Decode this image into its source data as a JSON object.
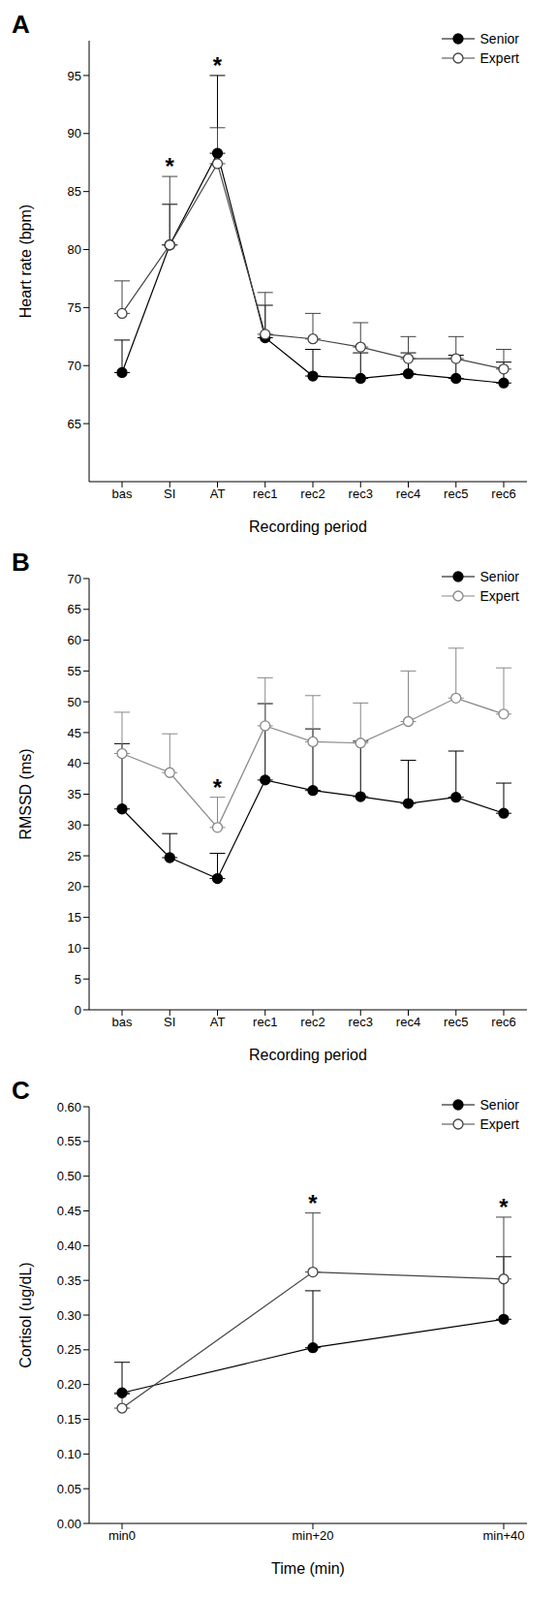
{
  "chart_data": [
    {
      "type": "line",
      "title": "A",
      "x_label": "Recording period",
      "y_label": "Heart rate (bpm)",
      "categories": [
        "bas",
        "SI",
        "AT",
        "rec1",
        "rec2",
        "rec3",
        "rec4",
        "rec5",
        "rec6"
      ],
      "ylim": [
        60,
        98
      ],
      "yticks": [
        65,
        70,
        75,
        80,
        85,
        90,
        95
      ],
      "legend": "upper right",
      "series": [
        {
          "name": "Senior",
          "color": "#000000",
          "marker": "circle",
          "values": [
            69.4,
            80.4,
            88.3,
            72.4,
            69.1,
            68.9,
            69.3,
            68.9,
            68.5
          ],
          "error": [
            2.8,
            3.5,
            6.7,
            2.8,
            2.3,
            2.2,
            1.8,
            2.0,
            1.8
          ]
        },
        {
          "name": "Expert",
          "color": "#444444",
          "marker": "open-circle",
          "values": [
            74.5,
            80.4,
            87.4,
            72.7,
            72.3,
            71.6,
            70.6,
            70.6,
            69.7
          ],
          "error": [
            2.8,
            5.9,
            3.1,
            3.6,
            2.2,
            2.1,
            1.9,
            1.9,
            1.7
          ]
        }
      ],
      "annotations": [
        {
          "x": "SI",
          "text": "*"
        },
        {
          "x": "AT",
          "text": "*"
        }
      ]
    },
    {
      "type": "line",
      "title": "B",
      "x_label": "Recording period",
      "y_label": "RMSSD (ms)",
      "categories": [
        "bas",
        "SI",
        "AT",
        "rec1",
        "rec2",
        "rec3",
        "rec4",
        "rec5",
        "rec6"
      ],
      "ylim": [
        0,
        70
      ],
      "yticks": [
        0,
        5,
        10,
        15,
        20,
        25,
        30,
        35,
        40,
        45,
        50,
        55,
        60,
        65,
        70
      ],
      "legend": "upper right",
      "series": [
        {
          "name": "Senior",
          "color": "#000000",
          "marker": "circle",
          "values": [
            32.6,
            24.7,
            21.3,
            37.3,
            35.6,
            34.6,
            33.5,
            34.5,
            31.9
          ],
          "error": [
            10.6,
            3.9,
            4.1,
            12.4,
            10.0,
            9.0,
            7.0,
            7.5,
            4.9
          ]
        },
        {
          "name": "Expert",
          "color": "#888888",
          "marker": "open-circle",
          "values": [
            41.6,
            38.5,
            29.6,
            46.1,
            43.5,
            43.3,
            46.8,
            50.6,
            48.0
          ],
          "error": [
            6.7,
            6.3,
            4.9,
            7.8,
            7.5,
            6.5,
            8.2,
            8.1,
            7.5
          ]
        }
      ],
      "annotations": [
        {
          "x": "AT",
          "text": "*"
        }
      ]
    },
    {
      "type": "line",
      "title": "C",
      "x_label": "Time (min)",
      "y_label": "Cortisol (ug/dL)",
      "categories": [
        "min0",
        "min+20",
        "min+40"
      ],
      "ylim": [
        0,
        0.6
      ],
      "yticks": [
        {
          "value": 0,
          "label": "0.00"
        },
        {
          "value": 0.05,
          "label": "0.05"
        },
        {
          "value": 0.1,
          "label": "0.10"
        },
        {
          "value": 0.15,
          "label": "0.15"
        },
        {
          "value": 0.2,
          "label": "0.20"
        },
        {
          "value": 0.25,
          "label": "0.25"
        },
        {
          "value": 0.3,
          "label": "0.30"
        },
        {
          "value": 0.35,
          "label": "0.35"
        },
        {
          "value": 0.4,
          "label": "0.40"
        },
        {
          "value": 0.45,
          "label": "0.45"
        },
        {
          "value": 0.5,
          "label": "0.50"
        },
        {
          "value": 0.55,
          "label": "0.55"
        },
        {
          "value": 0.6,
          "label": "0.60"
        }
      ],
      "legend": "upper right",
      "series": [
        {
          "name": "Senior",
          "color": "#000000",
          "marker": "circle",
          "values": [
            0.188,
            0.253,
            0.294
          ],
          "error": [
            0.044,
            0.082,
            0.09
          ]
        },
        {
          "name": "Expert",
          "color": "#444444",
          "marker": "open-circle",
          "values": [
            0.166,
            0.362,
            0.352
          ],
          "error": [
            0.02,
            0.085,
            0.089
          ]
        }
      ],
      "annotations": [
        {
          "x": "min+20",
          "text": "*"
        },
        {
          "x": "min+40",
          "text": "*"
        }
      ]
    }
  ]
}
